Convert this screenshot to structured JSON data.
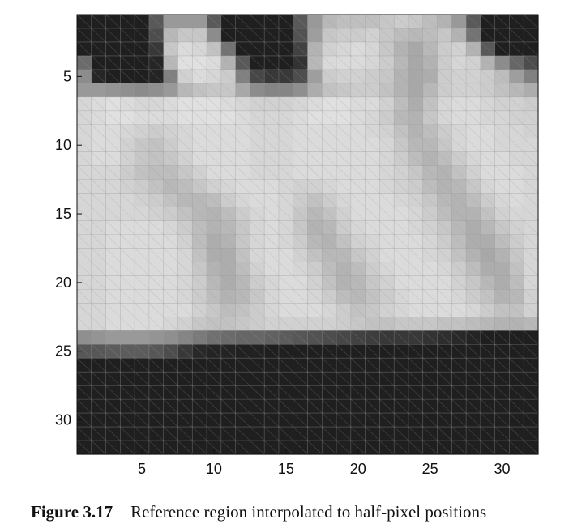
{
  "caption": {
    "label": "Figure 3.17",
    "text": "Reference region interpolated to half-pixel positions"
  },
  "chart_data": {
    "type": "heatmap",
    "title": "",
    "xlabel": "",
    "ylabel": "",
    "colormap": "gray",
    "xlim": [
      0.5,
      32.5
    ],
    "ylim": [
      0.5,
      32.5
    ],
    "x_ticks": [
      5,
      10,
      15,
      20,
      25,
      30
    ],
    "y_ticks": [
      5,
      10,
      15,
      20,
      25,
      30
    ],
    "grid": true,
    "values": [
      [
        0.12,
        0.12,
        0.12,
        0.12,
        0.12,
        0.35,
        0.6,
        0.6,
        0.6,
        0.35,
        0.12,
        0.12,
        0.12,
        0.12,
        0.12,
        0.35,
        0.6,
        0.72,
        0.75,
        0.75,
        0.75,
        0.78,
        0.8,
        0.78,
        0.74,
        0.7,
        0.6,
        0.35,
        0.12,
        0.12,
        0.12,
        0.12
      ],
      [
        0.12,
        0.12,
        0.12,
        0.12,
        0.12,
        0.3,
        0.72,
        0.78,
        0.78,
        0.55,
        0.12,
        0.12,
        0.12,
        0.12,
        0.12,
        0.32,
        0.62,
        0.78,
        0.8,
        0.8,
        0.82,
        0.78,
        0.74,
        0.72,
        0.74,
        0.78,
        0.7,
        0.45,
        0.12,
        0.12,
        0.12,
        0.12
      ],
      [
        0.12,
        0.12,
        0.12,
        0.12,
        0.12,
        0.22,
        0.78,
        0.86,
        0.84,
        0.76,
        0.45,
        0.12,
        0.12,
        0.12,
        0.12,
        0.26,
        0.7,
        0.82,
        0.84,
        0.86,
        0.84,
        0.78,
        0.7,
        0.66,
        0.72,
        0.8,
        0.82,
        0.7,
        0.35,
        0.12,
        0.12,
        0.12
      ],
      [
        0.42,
        0.12,
        0.12,
        0.12,
        0.12,
        0.15,
        0.72,
        0.88,
        0.88,
        0.86,
        0.7,
        0.35,
        0.12,
        0.12,
        0.12,
        0.2,
        0.72,
        0.85,
        0.86,
        0.86,
        0.84,
        0.8,
        0.72,
        0.66,
        0.7,
        0.8,
        0.84,
        0.82,
        0.7,
        0.55,
        0.4,
        0.3
      ],
      [
        0.55,
        0.15,
        0.12,
        0.12,
        0.12,
        0.14,
        0.5,
        0.82,
        0.86,
        0.84,
        0.8,
        0.5,
        0.28,
        0.22,
        0.22,
        0.3,
        0.62,
        0.8,
        0.82,
        0.82,
        0.8,
        0.78,
        0.7,
        0.66,
        0.68,
        0.8,
        0.82,
        0.82,
        0.8,
        0.74,
        0.62,
        0.5
      ],
      [
        0.6,
        0.6,
        0.58,
        0.56,
        0.54,
        0.56,
        0.6,
        0.72,
        0.76,
        0.78,
        0.78,
        0.66,
        0.55,
        0.52,
        0.52,
        0.56,
        0.68,
        0.76,
        0.78,
        0.8,
        0.8,
        0.76,
        0.7,
        0.66,
        0.72,
        0.8,
        0.82,
        0.82,
        0.8,
        0.76,
        0.72,
        0.68
      ],
      [
        0.84,
        0.86,
        0.88,
        0.86,
        0.84,
        0.84,
        0.86,
        0.88,
        0.88,
        0.88,
        0.86,
        0.84,
        0.82,
        0.82,
        0.82,
        0.84,
        0.86,
        0.88,
        0.88,
        0.86,
        0.86,
        0.82,
        0.74,
        0.68,
        0.76,
        0.84,
        0.86,
        0.86,
        0.84,
        0.82,
        0.82,
        0.8
      ],
      [
        0.84,
        0.86,
        0.88,
        0.88,
        0.86,
        0.86,
        0.86,
        0.88,
        0.88,
        0.88,
        0.88,
        0.86,
        0.84,
        0.84,
        0.84,
        0.86,
        0.88,
        0.88,
        0.88,
        0.86,
        0.84,
        0.8,
        0.72,
        0.7,
        0.78,
        0.84,
        0.86,
        0.86,
        0.84,
        0.84,
        0.82,
        0.82
      ],
      [
        0.84,
        0.86,
        0.86,
        0.84,
        0.82,
        0.8,
        0.82,
        0.84,
        0.86,
        0.86,
        0.86,
        0.86,
        0.84,
        0.84,
        0.84,
        0.86,
        0.86,
        0.86,
        0.86,
        0.86,
        0.84,
        0.82,
        0.76,
        0.7,
        0.74,
        0.8,
        0.84,
        0.86,
        0.86,
        0.84,
        0.84,
        0.82
      ],
      [
        0.84,
        0.86,
        0.86,
        0.82,
        0.78,
        0.76,
        0.8,
        0.84,
        0.86,
        0.86,
        0.86,
        0.86,
        0.84,
        0.84,
        0.84,
        0.86,
        0.86,
        0.86,
        0.86,
        0.86,
        0.86,
        0.84,
        0.78,
        0.72,
        0.72,
        0.78,
        0.84,
        0.86,
        0.86,
        0.84,
        0.84,
        0.84
      ],
      [
        0.84,
        0.86,
        0.86,
        0.82,
        0.78,
        0.76,
        0.78,
        0.82,
        0.86,
        0.86,
        0.86,
        0.86,
        0.84,
        0.84,
        0.84,
        0.86,
        0.86,
        0.86,
        0.86,
        0.86,
        0.86,
        0.84,
        0.8,
        0.74,
        0.7,
        0.74,
        0.8,
        0.84,
        0.86,
        0.86,
        0.84,
        0.84
      ],
      [
        0.84,
        0.84,
        0.84,
        0.8,
        0.76,
        0.74,
        0.74,
        0.78,
        0.82,
        0.86,
        0.86,
        0.86,
        0.84,
        0.84,
        0.84,
        0.86,
        0.86,
        0.86,
        0.86,
        0.86,
        0.86,
        0.84,
        0.82,
        0.78,
        0.72,
        0.7,
        0.76,
        0.82,
        0.86,
        0.86,
        0.86,
        0.84
      ],
      [
        0.84,
        0.84,
        0.84,
        0.82,
        0.8,
        0.76,
        0.72,
        0.74,
        0.78,
        0.82,
        0.84,
        0.86,
        0.86,
        0.86,
        0.84,
        0.82,
        0.82,
        0.84,
        0.86,
        0.86,
        0.86,
        0.84,
        0.82,
        0.8,
        0.74,
        0.7,
        0.72,
        0.78,
        0.84,
        0.86,
        0.86,
        0.84
      ],
      [
        0.84,
        0.84,
        0.84,
        0.84,
        0.82,
        0.8,
        0.76,
        0.72,
        0.72,
        0.74,
        0.8,
        0.84,
        0.86,
        0.86,
        0.84,
        0.8,
        0.76,
        0.8,
        0.84,
        0.86,
        0.86,
        0.86,
        0.84,
        0.82,
        0.78,
        0.72,
        0.7,
        0.74,
        0.8,
        0.84,
        0.86,
        0.84
      ],
      [
        0.84,
        0.84,
        0.84,
        0.84,
        0.84,
        0.82,
        0.8,
        0.76,
        0.72,
        0.7,
        0.74,
        0.8,
        0.84,
        0.86,
        0.84,
        0.78,
        0.72,
        0.76,
        0.82,
        0.86,
        0.86,
        0.86,
        0.86,
        0.84,
        0.8,
        0.74,
        0.7,
        0.7,
        0.76,
        0.82,
        0.84,
        0.84
      ],
      [
        0.84,
        0.84,
        0.86,
        0.86,
        0.86,
        0.86,
        0.84,
        0.8,
        0.74,
        0.7,
        0.72,
        0.78,
        0.84,
        0.86,
        0.84,
        0.78,
        0.7,
        0.72,
        0.8,
        0.84,
        0.86,
        0.86,
        0.86,
        0.84,
        0.82,
        0.78,
        0.72,
        0.68,
        0.72,
        0.78,
        0.82,
        0.84
      ],
      [
        0.84,
        0.84,
        0.86,
        0.86,
        0.86,
        0.86,
        0.86,
        0.82,
        0.74,
        0.68,
        0.7,
        0.78,
        0.84,
        0.86,
        0.84,
        0.8,
        0.72,
        0.7,
        0.76,
        0.82,
        0.84,
        0.86,
        0.86,
        0.86,
        0.84,
        0.8,
        0.74,
        0.68,
        0.68,
        0.74,
        0.8,
        0.84
      ],
      [
        0.84,
        0.84,
        0.86,
        0.86,
        0.86,
        0.86,
        0.86,
        0.84,
        0.76,
        0.68,
        0.68,
        0.76,
        0.84,
        0.86,
        0.86,
        0.82,
        0.76,
        0.72,
        0.72,
        0.78,
        0.82,
        0.86,
        0.86,
        0.86,
        0.84,
        0.82,
        0.76,
        0.7,
        0.66,
        0.7,
        0.78,
        0.84
      ],
      [
        0.84,
        0.84,
        0.86,
        0.86,
        0.86,
        0.86,
        0.86,
        0.84,
        0.78,
        0.7,
        0.68,
        0.74,
        0.82,
        0.86,
        0.86,
        0.84,
        0.8,
        0.74,
        0.7,
        0.74,
        0.8,
        0.84,
        0.86,
        0.86,
        0.86,
        0.84,
        0.8,
        0.74,
        0.68,
        0.68,
        0.76,
        0.84
      ],
      [
        0.84,
        0.84,
        0.86,
        0.86,
        0.86,
        0.86,
        0.86,
        0.84,
        0.8,
        0.72,
        0.68,
        0.72,
        0.8,
        0.84,
        0.86,
        0.86,
        0.82,
        0.76,
        0.7,
        0.72,
        0.78,
        0.82,
        0.86,
        0.86,
        0.86,
        0.86,
        0.82,
        0.78,
        0.72,
        0.68,
        0.74,
        0.84
      ],
      [
        0.84,
        0.84,
        0.86,
        0.86,
        0.86,
        0.86,
        0.86,
        0.84,
        0.8,
        0.74,
        0.7,
        0.72,
        0.78,
        0.84,
        0.86,
        0.86,
        0.84,
        0.8,
        0.74,
        0.72,
        0.76,
        0.8,
        0.84,
        0.86,
        0.86,
        0.86,
        0.84,
        0.8,
        0.76,
        0.7,
        0.72,
        0.82
      ],
      [
        0.84,
        0.84,
        0.86,
        0.86,
        0.86,
        0.86,
        0.86,
        0.86,
        0.82,
        0.78,
        0.74,
        0.76,
        0.8,
        0.84,
        0.86,
        0.86,
        0.86,
        0.84,
        0.8,
        0.76,
        0.78,
        0.82,
        0.84,
        0.86,
        0.86,
        0.86,
        0.86,
        0.84,
        0.8,
        0.76,
        0.76,
        0.82
      ],
      [
        0.84,
        0.84,
        0.86,
        0.86,
        0.86,
        0.86,
        0.84,
        0.82,
        0.78,
        0.76,
        0.76,
        0.78,
        0.8,
        0.82,
        0.82,
        0.82,
        0.82,
        0.82,
        0.8,
        0.78,
        0.76,
        0.76,
        0.78,
        0.78,
        0.78,
        0.76,
        0.76,
        0.74,
        0.72,
        0.7,
        0.7,
        0.72
      ],
      [
        0.56,
        0.58,
        0.6,
        0.6,
        0.6,
        0.58,
        0.56,
        0.52,
        0.48,
        0.44,
        0.42,
        0.4,
        0.4,
        0.38,
        0.36,
        0.34,
        0.32,
        0.3,
        0.28,
        0.26,
        0.24,
        0.22,
        0.22,
        0.22,
        0.2,
        0.18,
        0.16,
        0.14,
        0.12,
        0.12,
        0.12,
        0.12
      ],
      [
        0.34,
        0.34,
        0.36,
        0.36,
        0.36,
        0.34,
        0.3,
        0.22,
        0.16,
        0.14,
        0.14,
        0.13,
        0.13,
        0.12,
        0.12,
        0.12,
        0.12,
        0.12,
        0.12,
        0.12,
        0.12,
        0.12,
        0.12,
        0.12,
        0.12,
        0.12,
        0.12,
        0.12,
        0.12,
        0.12,
        0.12,
        0.12
      ],
      [
        0.12,
        0.12,
        0.12,
        0.12,
        0.12,
        0.12,
        0.12,
        0.12,
        0.12,
        0.12,
        0.12,
        0.12,
        0.12,
        0.12,
        0.12,
        0.12,
        0.12,
        0.12,
        0.12,
        0.12,
        0.12,
        0.12,
        0.12,
        0.12,
        0.12,
        0.12,
        0.12,
        0.12,
        0.12,
        0.12,
        0.12,
        0.12
      ],
      [
        0.12,
        0.12,
        0.12,
        0.12,
        0.12,
        0.12,
        0.12,
        0.12,
        0.12,
        0.12,
        0.12,
        0.12,
        0.12,
        0.12,
        0.12,
        0.12,
        0.12,
        0.12,
        0.12,
        0.12,
        0.12,
        0.12,
        0.12,
        0.12,
        0.12,
        0.12,
        0.12,
        0.12,
        0.12,
        0.12,
        0.12,
        0.12
      ],
      [
        0.12,
        0.12,
        0.12,
        0.12,
        0.12,
        0.12,
        0.12,
        0.12,
        0.12,
        0.12,
        0.12,
        0.12,
        0.12,
        0.12,
        0.12,
        0.12,
        0.12,
        0.12,
        0.12,
        0.12,
        0.12,
        0.12,
        0.12,
        0.12,
        0.12,
        0.12,
        0.12,
        0.12,
        0.12,
        0.12,
        0.12,
        0.12
      ],
      [
        0.12,
        0.12,
        0.12,
        0.12,
        0.12,
        0.12,
        0.12,
        0.12,
        0.12,
        0.12,
        0.12,
        0.12,
        0.12,
        0.12,
        0.12,
        0.12,
        0.12,
        0.12,
        0.12,
        0.12,
        0.12,
        0.12,
        0.12,
        0.12,
        0.12,
        0.12,
        0.12,
        0.12,
        0.12,
        0.12,
        0.12,
        0.12
      ],
      [
        0.12,
        0.12,
        0.12,
        0.12,
        0.12,
        0.12,
        0.12,
        0.12,
        0.12,
        0.12,
        0.12,
        0.12,
        0.12,
        0.12,
        0.12,
        0.12,
        0.12,
        0.12,
        0.12,
        0.12,
        0.12,
        0.12,
        0.12,
        0.12,
        0.12,
        0.12,
        0.12,
        0.12,
        0.12,
        0.12,
        0.12,
        0.12
      ],
      [
        0.12,
        0.12,
        0.12,
        0.12,
        0.12,
        0.12,
        0.12,
        0.12,
        0.12,
        0.12,
        0.12,
        0.12,
        0.12,
        0.12,
        0.12,
        0.12,
        0.12,
        0.12,
        0.12,
        0.12,
        0.12,
        0.12,
        0.12,
        0.12,
        0.12,
        0.12,
        0.12,
        0.12,
        0.12,
        0.12,
        0.12,
        0.12
      ],
      [
        0.12,
        0.12,
        0.12,
        0.12,
        0.12,
        0.12,
        0.12,
        0.12,
        0.12,
        0.12,
        0.12,
        0.12,
        0.12,
        0.12,
        0.12,
        0.12,
        0.12,
        0.12,
        0.12,
        0.12,
        0.12,
        0.12,
        0.12,
        0.12,
        0.12,
        0.12,
        0.12,
        0.12,
        0.12,
        0.12,
        0.12,
        0.12
      ]
    ]
  }
}
